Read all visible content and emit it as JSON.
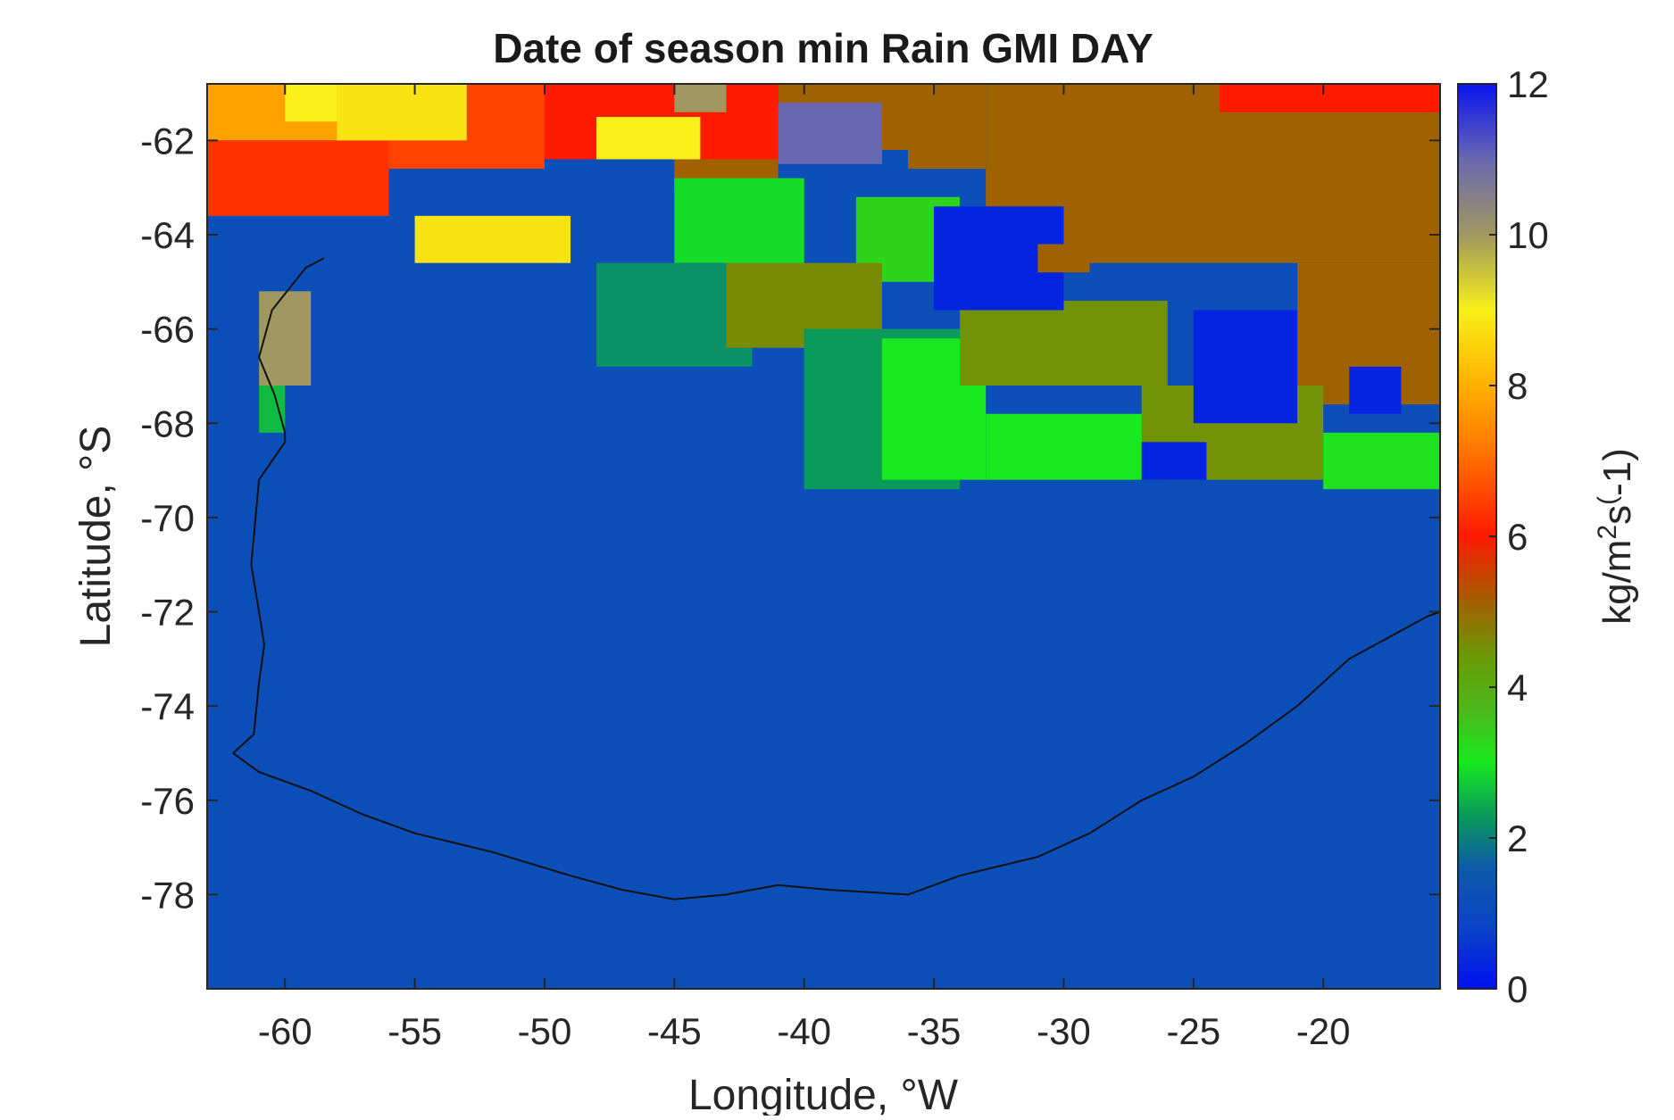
{
  "chart_data": {
    "type": "heatmap",
    "title": "Date of season min Rain GMI DAY",
    "xlabel": "Longitude, °W",
    "ylabel": "Latitude, °S",
    "xlim": [
      -63,
      -15.5
    ],
    "ylim": [
      -80,
      -60.8
    ],
    "xticks": [
      -60,
      -55,
      -50,
      -45,
      -40,
      -35,
      -30,
      -25,
      -20
    ],
    "yticks": [
      -62,
      -64,
      -66,
      -68,
      -70,
      -72,
      -74,
      -76,
      -78
    ],
    "grid": false,
    "colorbar": {
      "label": "kg/m²s(-1)",
      "label_parts": {
        "base": "kg/m",
        "sup1": "2",
        "mid": "s",
        "sup2": "(",
        "tail": "-1)"
      },
      "range": [
        0,
        12
      ],
      "ticks": [
        0,
        2,
        4,
        6,
        8,
        10,
        12
      ],
      "stops": [
        {
          "v": 0,
          "color": "#0010f0"
        },
        {
          "v": 0.8,
          "color": "#0a44c8"
        },
        {
          "v": 1.6,
          "color": "#0f5aa8"
        },
        {
          "v": 2.3,
          "color": "#0a9a5a"
        },
        {
          "v": 3.0,
          "color": "#18e820"
        },
        {
          "v": 3.7,
          "color": "#4cb81c"
        },
        {
          "v": 4.4,
          "color": "#6a9a08"
        },
        {
          "v": 5.2,
          "color": "#a85a00"
        },
        {
          "v": 6.0,
          "color": "#ff1a00"
        },
        {
          "v": 7.2,
          "color": "#ff7a00"
        },
        {
          "v": 8.0,
          "color": "#ffb000"
        },
        {
          "v": 9.0,
          "color": "#f8f018"
        },
        {
          "v": 10.0,
          "color": "#a09860"
        },
        {
          "v": 11.0,
          "color": "#6a68b0"
        },
        {
          "v": 12.0,
          "color": "#0a14f0"
        }
      ]
    },
    "background_value": 1.2,
    "regions": [
      {
        "lon": [
          -63,
          -15.5
        ],
        "lat": [
          -70,
          -60.8
        ],
        "v": 1.2
      },
      {
        "lon": [
          -33,
          -15.5
        ],
        "lat": [
          -64.6,
          -60.8
        ],
        "v": 5.1
      },
      {
        "lon": [
          -21,
          -15.5
        ],
        "lat": [
          -67.6,
          -64.6
        ],
        "v": 5.1
      },
      {
        "lon": [
          -24,
          -15.5
        ],
        "lat": [
          -61.4,
          -60.8
        ],
        "v": 6.0
      },
      {
        "lon": [
          -36,
          -33
        ],
        "lat": [
          -62.6,
          -60.8
        ],
        "v": 5.1
      },
      {
        "lon": [
          -41,
          -36
        ],
        "lat": [
          -62.2,
          -60.8
        ],
        "v": 5.1
      },
      {
        "lon": [
          -50,
          -41
        ],
        "lat": [
          -62.4,
          -60.8
        ],
        "v": 6.0
      },
      {
        "lon": [
          -45,
          -41
        ],
        "lat": [
          -63.0,
          -62.4
        ],
        "v": 5.1
      },
      {
        "lon": [
          -56,
          -50
        ],
        "lat": [
          -62.6,
          -60.8
        ],
        "v": 6.5
      },
      {
        "lon": [
          -63,
          -56
        ],
        "lat": [
          -62.0,
          -60.8
        ],
        "v": 7.8
      },
      {
        "lon": [
          -63,
          -56
        ],
        "lat": [
          -63.6,
          -62.0
        ],
        "v": 6.3
      },
      {
        "lon": [
          -58,
          -53
        ],
        "lat": [
          -62.0,
          -60.8
        ],
        "v": 8.8
      },
      {
        "lon": [
          -60,
          -58
        ],
        "lat": [
          -61.6,
          -60.8
        ],
        "v": 9.0
      },
      {
        "lon": [
          -48,
          -44
        ],
        "lat": [
          -62.4,
          -61.5
        ],
        "v": 9.0
      },
      {
        "lon": [
          -45,
          -43
        ],
        "lat": [
          -61.4,
          -60.8
        ],
        "v": 10.0
      },
      {
        "lon": [
          -41,
          -37
        ],
        "lat": [
          -62.5,
          -61.2
        ],
        "v": 11.0
      },
      {
        "lon": [
          -55,
          -49
        ],
        "lat": [
          -64.6,
          -63.6
        ],
        "v": 8.8
      },
      {
        "lon": [
          -61,
          -59
        ],
        "lat": [
          -67.2,
          -65.2
        ],
        "v": 10.0
      },
      {
        "lon": [
          -61,
          -60
        ],
        "lat": [
          -68.2,
          -67.2
        ],
        "v": 2.6
      },
      {
        "lon": [
          -45,
          -40
        ],
        "lat": [
          -64.6,
          -62.8
        ],
        "v": 2.9
      },
      {
        "lon": [
          -38,
          -34
        ],
        "lat": [
          -65.0,
          -63.2
        ],
        "v": 3.3
      },
      {
        "lon": [
          -48,
          -42
        ],
        "lat": [
          -66.8,
          -64.6
        ],
        "v": 2.2
      },
      {
        "lon": [
          -43,
          -37
        ],
        "lat": [
          -66.4,
          -64.6
        ],
        "v": 4.6
      },
      {
        "lon": [
          -40,
          -34
        ],
        "lat": [
          -69.4,
          -66.0
        ],
        "v": 2.3
      },
      {
        "lon": [
          -37,
          -33
        ],
        "lat": [
          -69.2,
          -66.2
        ],
        "v": 3.0
      },
      {
        "lon": [
          -33,
          -26
        ],
        "lat": [
          -69.2,
          -67.8
        ],
        "v": 3.0
      },
      {
        "lon": [
          -34,
          -26
        ],
        "lat": [
          -67.2,
          -65.4
        ],
        "v": 4.5
      },
      {
        "lon": [
          -27,
          -20
        ],
        "lat": [
          -69.2,
          -67.2
        ],
        "v": 4.5
      },
      {
        "lon": [
          -20,
          -15.5
        ],
        "lat": [
          -69.4,
          -68.2
        ],
        "v": 3.1
      },
      {
        "lon": [
          -35,
          -30
        ],
        "lat": [
          -65.6,
          -63.4
        ],
        "v": 0.3
      },
      {
        "lon": [
          -25,
          -21
        ],
        "lat": [
          -68.0,
          -65.6
        ],
        "v": 0.3
      },
      {
        "lon": [
          -27,
          -24.5
        ],
        "lat": [
          -69.2,
          -68.4
        ],
        "v": 0.3
      },
      {
        "lon": [
          -19,
          -17
        ],
        "lat": [
          -67.8,
          -66.8
        ],
        "v": 0.3
      },
      {
        "lon": [
          -31,
          -29
        ],
        "lat": [
          -64.8,
          -64.2
        ],
        "v": 5.1
      }
    ],
    "coastline": [
      [
        -62,
        -75.0
      ],
      [
        -61,
        -75.4
      ],
      [
        -59,
        -75.8
      ],
      [
        -57,
        -76.3
      ],
      [
        -55,
        -76.7
      ],
      [
        -52,
        -77.1
      ],
      [
        -49,
        -77.6
      ],
      [
        -47,
        -77.9
      ],
      [
        -45,
        -78.1
      ],
      [
        -43,
        -78.0
      ],
      [
        -41,
        -77.8
      ],
      [
        -39,
        -77.9
      ],
      [
        -36,
        -78.0
      ],
      [
        -34,
        -77.6
      ],
      [
        -31,
        -77.2
      ],
      [
        -29,
        -76.7
      ],
      [
        -27,
        -76.0
      ],
      [
        -25,
        -75.5
      ],
      [
        -23,
        -74.8
      ],
      [
        -21,
        -74.0
      ],
      [
        -19,
        -73.0
      ],
      [
        -17,
        -72.4
      ],
      [
        -16,
        -72.1
      ],
      [
        -15.5,
        -72.0
      ]
    ],
    "peninsula_coast": [
      [
        -62,
        -75.0
      ],
      [
        -61.2,
        -74.6
      ],
      [
        -61,
        -73.5
      ],
      [
        -60.8,
        -72.7
      ],
      [
        -61,
        -72.0
      ],
      [
        -61.3,
        -71.0
      ],
      [
        -61,
        -69.2
      ],
      [
        -60,
        -68.4
      ],
      [
        -60,
        -68.2
      ],
      [
        -60.4,
        -67.4
      ],
      [
        -61,
        -66.6
      ],
      [
        -60.5,
        -65.6
      ],
      [
        -59.2,
        -64.7
      ],
      [
        -58.5,
        -64.5
      ]
    ]
  }
}
